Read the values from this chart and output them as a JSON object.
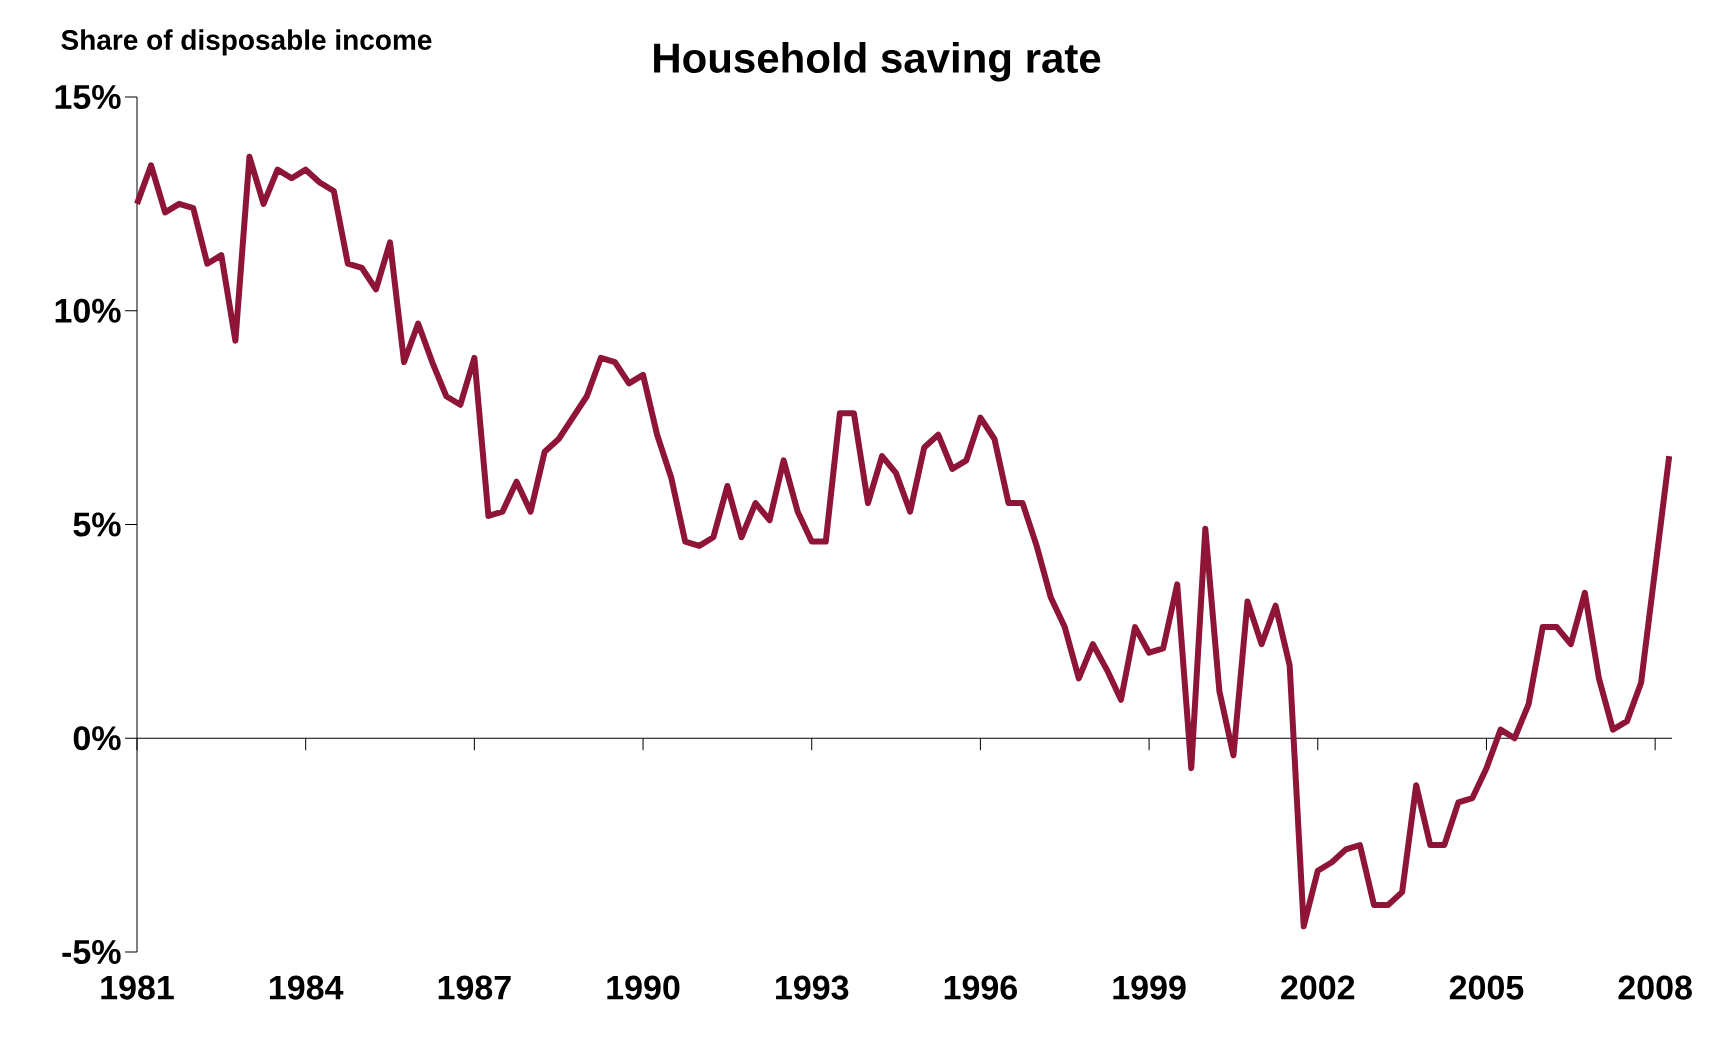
{
  "chart_data": {
    "type": "line",
    "title": "Household saving rate",
    "ylabel": "Share of disposable income",
    "x": [
      1981,
      1981.25,
      1981.5,
      1981.75,
      1982,
      1982.25,
      1982.5,
      1982.75,
      1983,
      1983.25,
      1983.5,
      1983.75,
      1984,
      1984.25,
      1984.5,
      1984.75,
      1985,
      1985.25,
      1985.5,
      1985.75,
      1986,
      1986.25,
      1986.5,
      1986.75,
      1987,
      1987.25,
      1987.5,
      1987.75,
      1988,
      1988.25,
      1988.5,
      1988.75,
      1989,
      1989.25,
      1989.5,
      1989.75,
      1990,
      1990.25,
      1990.5,
      1990.75,
      1991,
      1991.25,
      1991.5,
      1991.75,
      1992,
      1992.25,
      1992.5,
      1992.75,
      1993,
      1993.25,
      1993.5,
      1993.75,
      1994,
      1994.25,
      1994.5,
      1994.75,
      1995,
      1995.25,
      1995.5,
      1995.75,
      1996,
      1996.25,
      1996.5,
      1996.75,
      1997,
      1997.25,
      1997.5,
      1997.75,
      1998,
      1998.25,
      1998.5,
      1998.75,
      1999,
      1999.25,
      1999.5,
      1999.75,
      2000,
      2000.25,
      2000.5,
      2000.75,
      2001,
      2001.25,
      2001.5,
      2001.75,
      2002,
      2002.25,
      2002.5,
      2002.75,
      2003,
      2003.25,
      2003.5,
      2003.75,
      2004,
      2004.25,
      2004.5,
      2004.75,
      2005,
      2005.25,
      2005.5,
      2005.75,
      2006,
      2006.25,
      2006.5,
      2006.75,
      2007,
      2007.25,
      2007.5,
      2007.75,
      2008.25
    ],
    "values": [
      12.5,
      13.4,
      12.3,
      12.5,
      12.4,
      11.1,
      11.3,
      9.3,
      13.6,
      12.5,
      13.3,
      13.1,
      13.3,
      13.0,
      12.8,
      11.1,
      11.0,
      10.5,
      11.6,
      8.8,
      9.7,
      8.8,
      8.0,
      7.8,
      8.9,
      5.2,
      5.3,
      6.0,
      5.3,
      6.7,
      7.0,
      7.5,
      8.0,
      8.9,
      8.8,
      8.3,
      8.5,
      7.1,
      6.1,
      4.6,
      4.5,
      4.7,
      5.9,
      4.7,
      5.5,
      5.1,
      6.5,
      5.3,
      4.6,
      4.6,
      7.6,
      7.6,
      5.5,
      6.6,
      6.2,
      5.3,
      6.8,
      7.1,
      6.3,
      6.5,
      7.5,
      7.0,
      5.5,
      5.5,
      4.5,
      3.3,
      2.6,
      1.4,
      2.2,
      1.6,
      0.9,
      2.6,
      2.0,
      2.1,
      3.6,
      -0.7,
      4.9,
      1.1,
      -0.4,
      3.2,
      2.2,
      3.1,
      1.7,
      -4.4,
      -3.1,
      -2.9,
      -2.6,
      -2.5,
      -3.9,
      -3.9,
      -3.6,
      -1.1,
      -2.5,
      -2.5,
      -1.5,
      -1.4,
      -0.7,
      0.2,
      0.0,
      0.8,
      2.6,
      2.6,
      2.2,
      3.4,
      1.4,
      0.2,
      0.4,
      1.3,
      6.6
    ],
    "color": "#8e1538",
    "xlim": [
      1981,
      2008.3
    ],
    "xticks": [
      1981,
      1984,
      1987,
      1990,
      1993,
      1996,
      1999,
      2002,
      2005,
      2008
    ],
    "ylim": [
      -5,
      15
    ],
    "yticks": [
      {
        "value": -5,
        "label": "-5%"
      },
      {
        "value": 0,
        "label": "0%"
      },
      {
        "value": 5,
        "label": "5%"
      },
      {
        "value": 10,
        "label": "10%"
      },
      {
        "value": 15,
        "label": "15%"
      }
    ],
    "marker": "none",
    "line_style": "solid"
  }
}
